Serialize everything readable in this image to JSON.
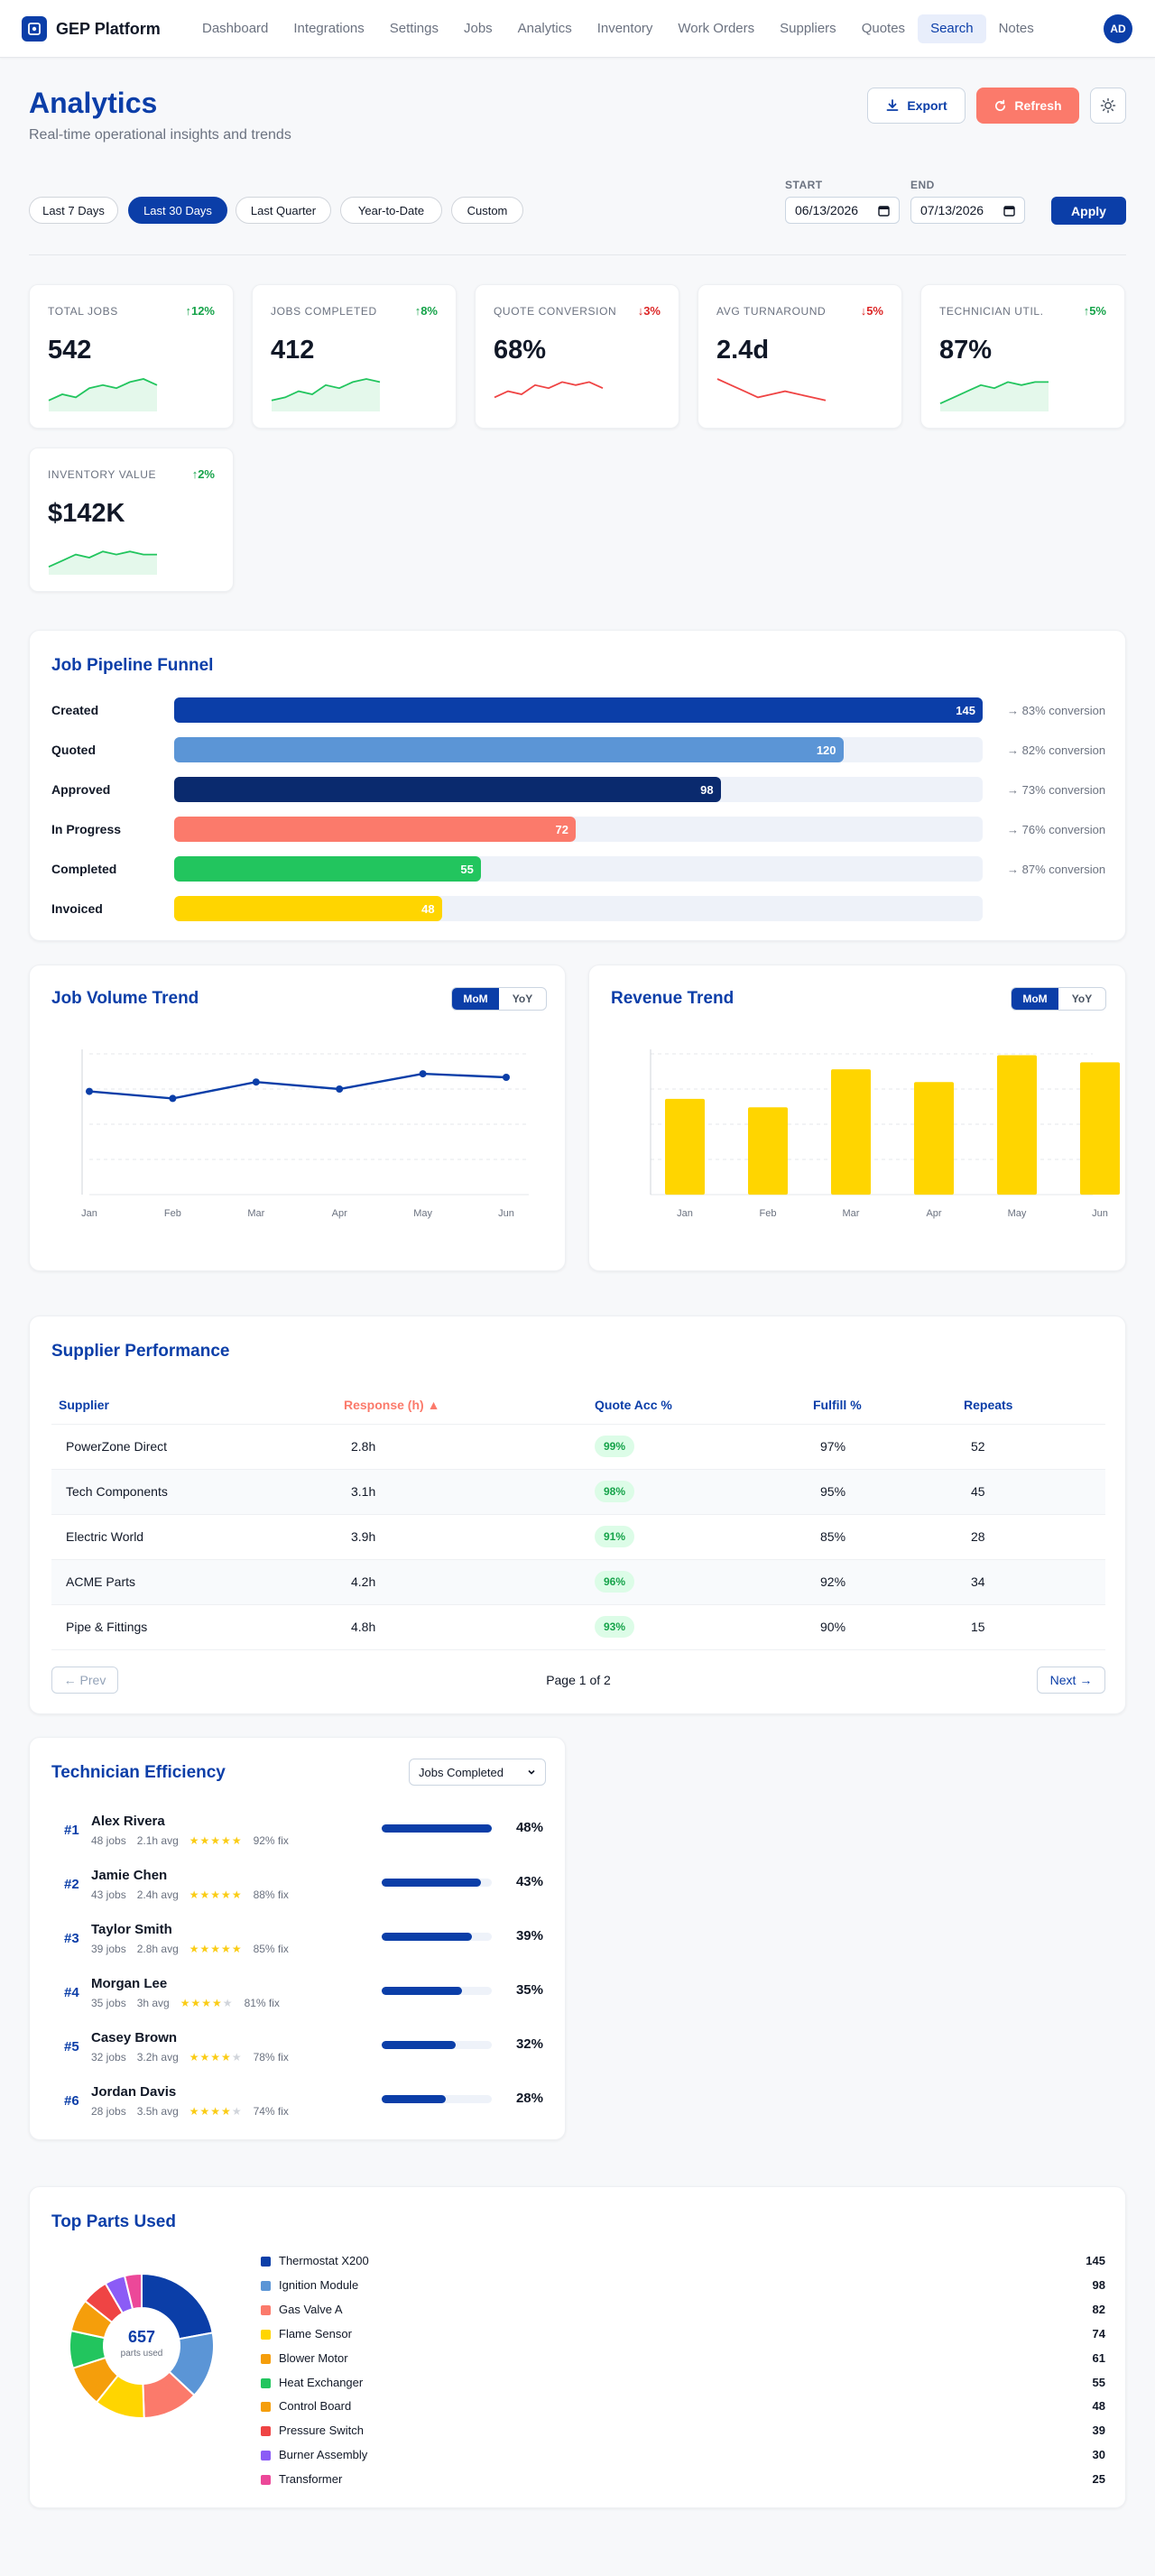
{
  "colors": {
    "primary": "#0b3ea8",
    "accent": "#fb7a6b",
    "positive": "#16a34a",
    "negative": "#dc2626",
    "gold": "#ffd500"
  },
  "nav": {
    "brand": "GEP Platform",
    "brand_icon": "shield-logo-icon",
    "links": [
      "Dashboard",
      "Integrations",
      "Settings",
      "Jobs",
      "Analytics",
      "Inventory",
      "Work Orders",
      "Suppliers",
      "Quotes",
      "Search",
      "Notes"
    ],
    "active": "Search",
    "avatar": "AD"
  },
  "header": {
    "title": "Analytics",
    "subtitle": "Real-time operational insights and trends",
    "export_label": "Export",
    "refresh_label": "Refresh"
  },
  "filters": {
    "ranges": [
      "Last 7 Days",
      "Last 30 Days",
      "Last Quarter",
      "Year-to-Date",
      "Custom"
    ],
    "active_range": "Last 30 Days",
    "start_label": "START",
    "start_value": "06/13/2026",
    "end_label": "END",
    "end_value": "07/13/2026",
    "apply_label": "Apply"
  },
  "kpis": [
    {
      "label": "TOTAL JOBS",
      "value": "542",
      "delta": "12%",
      "direction": "up",
      "spark": [
        3,
        5,
        4,
        7,
        8,
        7,
        9,
        10,
        8
      ]
    },
    {
      "label": "JOBS COMPLETED",
      "value": "412",
      "delta": "8%",
      "direction": "up",
      "spark": [
        3,
        4,
        6,
        5,
        8,
        7,
        9,
        10,
        9
      ]
    },
    {
      "label": "QUOTE CONVERSION",
      "value": "68%",
      "delta": "3%",
      "direction": "down",
      "spark": [
        4,
        6,
        5,
        8,
        7,
        9,
        8,
        9,
        7
      ]
    },
    {
      "label": "AVG TURNAROUND",
      "value": "2.4d",
      "delta": "5%",
      "direction": "down",
      "spark": [
        10,
        8,
        6,
        4,
        5,
        6,
        5,
        4,
        3
      ]
    },
    {
      "label": "TECHNICIAN UTIL.",
      "value": "87%",
      "delta": "5%",
      "direction": "up",
      "spark": [
        2,
        4,
        6,
        8,
        7,
        9,
        8,
        9,
        9
      ]
    },
    {
      "label": "INVENTORY VALUE",
      "value": "$142K",
      "delta": "2%",
      "direction": "up",
      "spark": [
        2,
        4,
        6,
        5,
        7,
        6,
        7,
        6,
        6
      ]
    }
  ],
  "funnel": {
    "title": "Job Pipeline Funnel",
    "stages": [
      {
        "label": "Created",
        "value": 145,
        "conversion": "→ 83% conversion"
      },
      {
        "label": "Quoted",
        "value": 120,
        "conversion": "→ 82% conversion"
      },
      {
        "label": "Approved",
        "value": 98,
        "conversion": "→ 73% conversion"
      },
      {
        "label": "In Progress",
        "value": 72,
        "conversion": "→ 76% conversion"
      },
      {
        "label": "Completed",
        "value": 55,
        "conversion": "→ 87% conversion"
      },
      {
        "label": "Invoiced",
        "value": 48,
        "conversion": ""
      }
    ],
    "colors": [
      "#0b3ea8",
      "#5b95d6",
      "#0a2a6e",
      "#fb7a6b",
      "#22c55e",
      "#ffd500"
    ]
  },
  "job_volume": {
    "title": "Job Volume Trend",
    "toggle": [
      "MoM",
      "YoY"
    ],
    "active": "MoM",
    "chart_data": {
      "type": "line",
      "categories": [
        "Jan",
        "Feb",
        "Mar",
        "Apr",
        "May",
        "Jun"
      ],
      "values": [
        88,
        82,
        96,
        90,
        103,
        100
      ],
      "ylim": [
        0,
        120
      ]
    }
  },
  "revenue": {
    "title": "Revenue Trend",
    "toggle": [
      "MoM",
      "YoY"
    ],
    "active": "MoM",
    "chart_data": {
      "type": "bar",
      "categories": [
        "Jan",
        "Feb",
        "Mar",
        "Apr",
        "May",
        "Jun"
      ],
      "values": [
        68,
        62,
        89,
        80,
        99,
        94
      ],
      "ylim": [
        0,
        100
      ]
    }
  },
  "suppliers": {
    "title": "Supplier Performance",
    "columns": [
      "Supplier",
      "Response (h) ▲",
      "Quote Acc %",
      "Fulfill %",
      "Repeats"
    ],
    "rows": [
      [
        "PowerZone Direct",
        "2.8h",
        "99%",
        "97%",
        "52"
      ],
      [
        "Tech Components",
        "3.1h",
        "98%",
        "95%",
        "45"
      ],
      [
        "Electric World",
        "3.9h",
        "91%",
        "85%",
        "28"
      ],
      [
        "ACME Parts",
        "4.2h",
        "96%",
        "92%",
        "34"
      ],
      [
        "Pipe & Fittings",
        "4.8h",
        "93%",
        "90%",
        "15"
      ]
    ],
    "prev_label": "← Prev",
    "next_label": "Next →",
    "page_label": "Page 1 of 2"
  },
  "technicians": {
    "title": "Technician Efficiency",
    "select_value": "Jobs Completed",
    "rows": [
      {
        "rank": "#1",
        "name": "Alex Rivera",
        "jobs": "48 jobs",
        "avg": "2.1h avg",
        "rating": 5,
        "fix": "92% fix",
        "pct": "48%",
        "share": 1.0
      },
      {
        "rank": "#2",
        "name": "Jamie Chen",
        "jobs": "43 jobs",
        "avg": "2.4h avg",
        "rating": 5,
        "fix": "88% fix",
        "pct": "43%",
        "share": 0.9
      },
      {
        "rank": "#3",
        "name": "Taylor Smith",
        "jobs": "39 jobs",
        "avg": "2.8h avg",
        "rating": 5,
        "fix": "85% fix",
        "pct": "39%",
        "share": 0.82
      },
      {
        "rank": "#4",
        "name": "Morgan Lee",
        "jobs": "35 jobs",
        "avg": "3h avg",
        "rating": 4,
        "fix": "81% fix",
        "pct": "35%",
        "share": 0.73
      },
      {
        "rank": "#5",
        "name": "Casey Brown",
        "jobs": "32 jobs",
        "avg": "3.2h avg",
        "rating": 4,
        "fix": "78% fix",
        "pct": "32%",
        "share": 0.67
      },
      {
        "rank": "#6",
        "name": "Jordan Davis",
        "jobs": "28 jobs",
        "avg": "3.5h avg",
        "rating": 4,
        "fix": "74% fix",
        "pct": "28%",
        "share": 0.58
      }
    ]
  },
  "parts": {
    "title": "Top Parts Used",
    "total": "657",
    "total_label": "parts used",
    "chart_data": {
      "type": "pie",
      "items": [
        {
          "name": "Thermostat X200",
          "value": 145,
          "color": "#0b3ea8"
        },
        {
          "name": "Ignition Module",
          "value": 98,
          "color": "#5b95d6"
        },
        {
          "name": "Gas Valve A",
          "value": 82,
          "color": "#fb7a6b"
        },
        {
          "name": "Flame Sensor",
          "value": 74,
          "color": "#ffd500"
        },
        {
          "name": "Blower Motor",
          "value": 61,
          "color": "#f59e0b"
        },
        {
          "name": "Heat Exchanger",
          "value": 55,
          "color": "#22c55e"
        },
        {
          "name": "Control Board",
          "value": 48,
          "color": "#f59e0b"
        },
        {
          "name": "Pressure Switch",
          "value": 39,
          "color": "#ef4444"
        },
        {
          "name": "Burner Assembly",
          "value": 30,
          "color": "#8b5cf6"
        },
        {
          "name": "Transformer",
          "value": 25,
          "color": "#ec4899"
        }
      ]
    }
  }
}
